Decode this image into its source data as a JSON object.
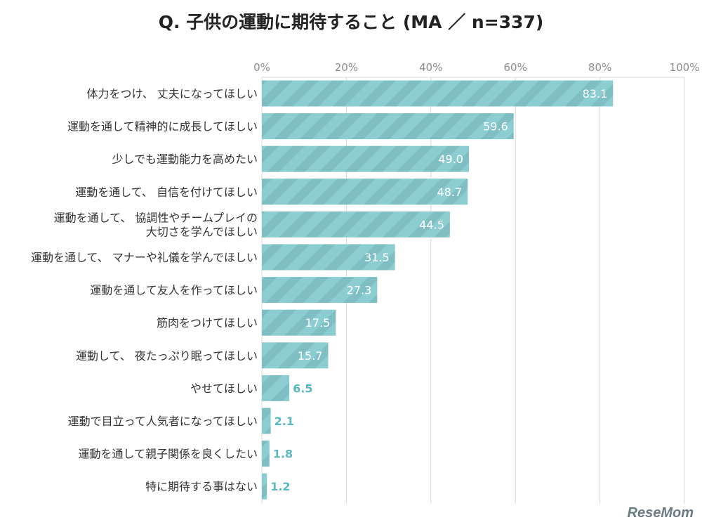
{
  "chart_data": {
    "type": "bar",
    "orientation": "horizontal",
    "title": "Q. 子供の運動に期待すること (MA ／ n=337)",
    "xlabel": "",
    "ylabel": "",
    "xlim": [
      0,
      100
    ],
    "x_ticks": [
      "0%",
      "20%",
      "40%",
      "60%",
      "80%",
      "100%"
    ],
    "grid": true,
    "categories": [
      "体力をつけ、 丈夫になってほしい",
      "運動を通して精神的に成長してほしい",
      "少しでも運動能力を高めたい",
      "運動を通して、 自信を付けてほしい",
      "運動を通して、 協調性やチームプレイの大切さを学んでほしい",
      "運動を通して、 マナーや礼儀を学んでほしい",
      "運動を通して友人を作ってほしい",
      "筋肉をつけてほしい",
      "運動して、 夜たっぷり眠ってほしい",
      "やせてほしい",
      "運動で目立って人気者になってほしい",
      "運動を通して親子関係を良くしたい",
      "特に期待する事はない"
    ],
    "category_lines": [
      [
        "体力をつけ、 丈夫になってほしい"
      ],
      [
        "運動を通して精神的に成長してほしい"
      ],
      [
        "少しでも運動能力を高めたい"
      ],
      [
        "運動を通して、 自信を付けてほしい"
      ],
      [
        "運動を通して、 協調性やチームプレイの",
        "大切さを学んでほしい"
      ],
      [
        "運動を通して、 マナーや礼儀を学んでほしい"
      ],
      [
        "運動を通して友人を作ってほしい"
      ],
      [
        "筋肉をつけてほしい"
      ],
      [
        "運動して、 夜たっぷり眠ってほしい"
      ],
      [
        "やせてほしい"
      ],
      [
        "運動で目立って人気者になってほしい"
      ],
      [
        "運動を通して親子関係を良くしたい"
      ],
      [
        "特に期待する事はない"
      ]
    ],
    "values": [
      83.1,
      59.6,
      49.0,
      48.7,
      44.5,
      31.5,
      27.3,
      17.5,
      15.7,
      6.5,
      2.1,
      1.8,
      1.2
    ],
    "value_labels": [
      "83.1",
      "59.6",
      "49.0",
      "48.7",
      "44.5",
      "31.5",
      "27.3",
      "17.5",
      "15.7",
      "6.5",
      "2.1",
      "1.8",
      "1.2"
    ],
    "colors": {
      "bar": "#8ccdd1",
      "stripe": "#7fbfc4",
      "label_inside": "#ffffff",
      "label_outside": "#5bb8bf",
      "grid": "#d9d9d9",
      "tick_text": "#8c8c8c",
      "category_text": "#333333"
    }
  },
  "watermark": "ReseMom"
}
